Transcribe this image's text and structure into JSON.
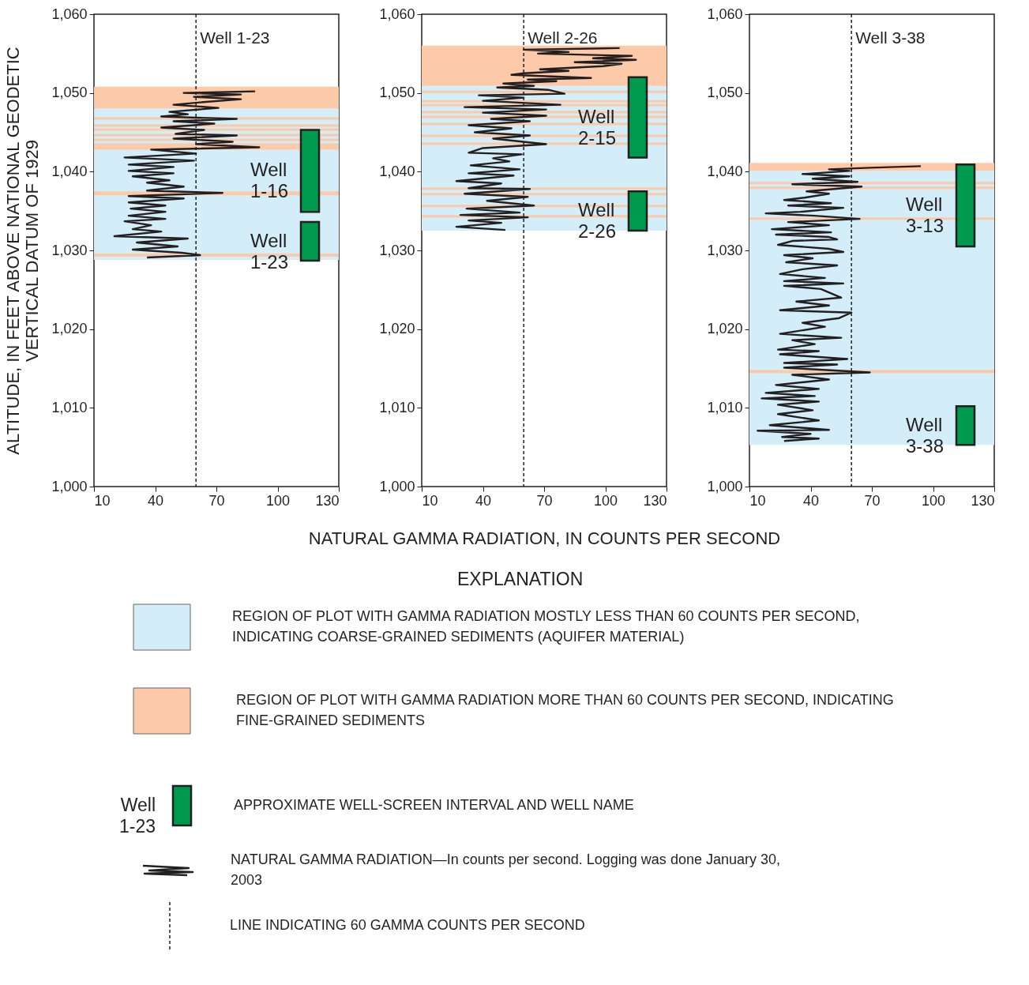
{
  "chart_data": [
    {
      "type": "line",
      "ylabel": "ALTITUDE, IN FEET ABOVE NATIONAL GEODETIC VERTICAL DATUM OF 1929",
      "xlim": [
        10,
        130
      ],
      "xticks": [
        10,
        40,
        70,
        100,
        130
      ],
      "ylim": [
        1000,
        1060
      ],
      "yticks": [
        {
          "value": 1000,
          "label": "1,000"
        },
        {
          "value": 1010,
          "label": "1,010"
        },
        {
          "value": 1020,
          "label": "1,020"
        },
        {
          "value": 1030,
          "label": "1,030"
        },
        {
          "value": 1040,
          "label": "1,040"
        },
        {
          "value": 1050,
          "label": "1,050"
        },
        {
          "value": 1060,
          "label": "1,060"
        }
      ],
      "series": [
        {
          "color": "#231f20",
          "x": [
            89,
            54,
            82,
            59,
            82,
            62,
            49,
            71,
            47,
            56,
            43,
            80,
            49,
            69,
            43,
            64,
            50,
            80,
            49,
            78,
            60,
            91,
            38,
            60,
            25,
            59,
            27,
            49,
            27,
            49,
            29,
            47,
            36,
            54,
            36,
            73,
            27,
            54,
            27,
            45,
            28,
            45,
            27,
            45,
            25,
            38,
            29,
            43,
            20,
            56,
            31,
            51,
            29,
            53,
            62,
            36
          ],
          "values": [
            1050.2,
            1050.0,
            1049.8,
            1049.5,
            1049.2,
            1048.8,
            1048.5,
            1048.1,
            1047.6,
            1047.3,
            1047.0,
            1046.7,
            1046.4,
            1046.1,
            1045.6,
            1045.3,
            1044.8,
            1044.6,
            1044.2,
            1043.8,
            1043.5,
            1043.1,
            1042.8,
            1042.3,
            1041.8,
            1041.4,
            1040.9,
            1040.6,
            1040.1,
            1039.8,
            1039.4,
            1038.9,
            1038.6,
            1038.1,
            1037.6,
            1037.3,
            1036.9,
            1036.6,
            1036.1,
            1035.7,
            1035.3,
            1034.9,
            1034.4,
            1034.0,
            1033.7,
            1033.2,
            1032.7,
            1032.4,
            1031.8,
            1031.5,
            1031.0,
            1030.5,
            1030.1,
            1029.7,
            1029.4,
            1029.1
          ]
        }
      ],
      "ref_lines": [
        {
          "axis": "x",
          "value": 60,
          "label": "Well 1-23",
          "line_style": "dashed",
          "color": "#231f20"
        }
      ],
      "bands": [
        {
          "axis": "y",
          "from": 1028.8,
          "to": 1048.0,
          "color": "#d3edf9"
        },
        {
          "axis": "y",
          "from": 1048.0,
          "to": 1050.8,
          "color": "#fccaa8"
        },
        {
          "axis": "y",
          "from": 1046.6,
          "to": 1046.9,
          "color": "#fccaa8"
        },
        {
          "axis": "y",
          "from": 1045.7,
          "to": 1046.0,
          "color": "#fccaa8"
        },
        {
          "axis": "y",
          "from": 1045.2,
          "to": 1045.5,
          "color": "#fccaa8"
        },
        {
          "axis": "y",
          "from": 1044.5,
          "to": 1044.8,
          "color": "#fccaa8"
        },
        {
          "axis": "y",
          "from": 1043.9,
          "to": 1044.2,
          "color": "#fccaa8"
        },
        {
          "axis": "y",
          "from": 1042.8,
          "to": 1043.6,
          "color": "#fccaa8"
        },
        {
          "axis": "y",
          "from": 1037.0,
          "to": 1037.5,
          "color": "#fccaa8"
        },
        {
          "axis": "y",
          "from": 1029.2,
          "to": 1029.6,
          "color": "#fccaa8"
        },
        {
          "axis": "y",
          "from": 1034.9,
          "to": 1045.3,
          "label": "Well 1-16",
          "color": "#009a4e"
        },
        {
          "axis": "y",
          "from": 1028.7,
          "to": 1033.6,
          "label": "Well 1-23",
          "color": "#009a4e"
        }
      ]
    },
    {
      "type": "line",
      "xlabel": "NATURAL GAMMA RADIATION, IN COUNTS PER SECOND",
      "xlim": [
        10,
        130
      ],
      "xticks": [
        10,
        40,
        70,
        100,
        130
      ],
      "ylim": [
        1000,
        1060
      ],
      "yticks": [
        {
          "value": 1000,
          "label": "1,000"
        },
        {
          "value": 1010,
          "label": "1,010"
        },
        {
          "value": 1020,
          "label": "1,020"
        },
        {
          "value": 1030,
          "label": "1,030"
        },
        {
          "value": 1040,
          "label": "1,040"
        },
        {
          "value": 1050,
          "label": "1,050"
        },
        {
          "value": 1060,
          "label": "1,060"
        }
      ],
      "series": [
        {
          "color": "#231f20",
          "x": [
            107,
            60,
            82,
            67,
            113,
            94,
            115,
            85,
            108,
            99,
            68,
            82,
            60,
            54,
            93,
            62,
            76,
            50,
            65,
            47,
            72,
            80,
            38,
            60,
            40,
            78,
            31,
            71,
            40,
            71,
            44,
            63,
            33,
            54,
            36,
            63,
            45,
            71,
            40,
            33,
            59,
            45,
            53,
            34,
            58,
            33,
            55,
            27,
            49,
            33,
            63,
            31,
            62,
            42,
            65,
            32,
            58,
            29,
            62,
            33,
            49,
            27,
            51
          ],
          "values": [
            1055.7,
            1055.5,
            1055.2,
            1055.0,
            1054.7,
            1054.4,
            1054.2,
            1053.9,
            1053.7,
            1053.4,
            1053.0,
            1052.8,
            1052.5,
            1052.3,
            1051.9,
            1051.7,
            1051.5,
            1051.2,
            1050.9,
            1050.7,
            1050.4,
            1049.9,
            1049.7,
            1049.4,
            1049.0,
            1048.5,
            1048.2,
            1047.9,
            1047.5,
            1047.1,
            1046.7,
            1046.4,
            1045.9,
            1045.5,
            1045.0,
            1044.6,
            1044.2,
            1043.5,
            1043.0,
            1042.4,
            1042.2,
            1041.7,
            1041.3,
            1040.8,
            1040.3,
            1039.8,
            1039.5,
            1038.8,
            1038.5,
            1037.9,
            1037.8,
            1037.2,
            1036.8,
            1036.3,
            1035.7,
            1035.3,
            1034.8,
            1034.5,
            1034.2,
            1033.8,
            1033.5,
            1033.0,
            1032.6
          ]
        }
      ],
      "ref_lines": [
        {
          "axis": "x",
          "value": 60,
          "label": "Well 2-26",
          "line_style": "dashed",
          "color": "#231f20"
        }
      ],
      "bands": [
        {
          "axis": "y",
          "from": 1032.5,
          "to": 1050.9,
          "color": "#d3edf9"
        },
        {
          "axis": "y",
          "from": 1050.9,
          "to": 1056.0,
          "color": "#fccaa8"
        },
        {
          "axis": "y",
          "from": 1050.0,
          "to": 1050.3,
          "color": "#fccaa8"
        },
        {
          "axis": "y",
          "from": 1048.8,
          "to": 1049.1,
          "color": "#fccaa8"
        },
        {
          "axis": "y",
          "from": 1048.3,
          "to": 1048.6,
          "color": "#fccaa8"
        },
        {
          "axis": "y",
          "from": 1047.4,
          "to": 1047.7,
          "color": "#fccaa8"
        },
        {
          "axis": "y",
          "from": 1046.8,
          "to": 1047.1,
          "color": "#fccaa8"
        },
        {
          "axis": "y",
          "from": 1045.9,
          "to": 1046.2,
          "color": "#fccaa8"
        },
        {
          "axis": "y",
          "from": 1044.4,
          "to": 1044.7,
          "color": "#fccaa8"
        },
        {
          "axis": "y",
          "from": 1043.4,
          "to": 1043.7,
          "color": "#fccaa8"
        },
        {
          "axis": "y",
          "from": 1037.7,
          "to": 1038.0,
          "color": "#fccaa8"
        },
        {
          "axis": "y",
          "from": 1037.0,
          "to": 1037.3,
          "color": "#fccaa8"
        },
        {
          "axis": "y",
          "from": 1035.5,
          "to": 1035.8,
          "color": "#fccaa8"
        },
        {
          "axis": "y",
          "from": 1034.2,
          "to": 1034.5,
          "color": "#fccaa8"
        },
        {
          "axis": "y",
          "from": 1041.8,
          "to": 1052.0,
          "label": "Well 2-15",
          "color": "#009a4e"
        },
        {
          "axis": "y",
          "from": 1032.5,
          "to": 1037.5,
          "label": "Well 2-26",
          "color": "#009a4e"
        }
      ]
    },
    {
      "type": "line",
      "xlim": [
        10,
        130
      ],
      "xticks": [
        10,
        40,
        70,
        100,
        130
      ],
      "ylim": [
        1000,
        1060
      ],
      "yticks": [
        {
          "value": 1000,
          "label": "1,000"
        },
        {
          "value": 1010,
          "label": "1,010"
        },
        {
          "value": 1020,
          "label": "1,020"
        },
        {
          "value": 1030,
          "label": "1,030"
        },
        {
          "value": 1040,
          "label": "1,040"
        },
        {
          "value": 1050,
          "label": "1,050"
        },
        {
          "value": 1060,
          "label": "1,060"
        }
      ],
      "series": [
        {
          "color": "#231f20",
          "x": [
            94,
            69,
            49,
            59,
            36,
            59,
            41,
            63,
            31,
            65,
            38,
            49,
            37,
            27,
            50,
            29,
            56,
            35,
            18,
            42,
            64,
            29,
            49,
            21,
            50,
            23,
            49,
            53,
            31,
            24,
            49,
            56,
            27,
            41,
            28,
            53,
            36,
            25,
            47,
            27,
            56,
            27,
            45,
            55,
            33,
            49,
            25,
            60,
            54,
            36,
            47,
            25,
            55,
            31,
            42,
            24,
            44,
            25,
            58,
            27,
            53,
            27,
            69,
            31,
            49,
            23,
            44,
            18,
            42,
            16,
            44,
            24,
            41,
            24,
            44,
            20,
            49,
            14,
            40,
            26,
            44,
            27
          ],
          "values": [
            1040.7,
            1040.5,
            1040.3,
            1040.1,
            1039.7,
            1039.4,
            1039.1,
            1038.7,
            1038.4,
            1038.1,
            1037.5,
            1037.2,
            1036.7,
            1036.4,
            1036.0,
            1035.7,
            1035.4,
            1034.9,
            1034.7,
            1034.4,
            1034.0,
            1033.6,
            1033.2,
            1032.7,
            1032.3,
            1032.0,
            1031.7,
            1031.4,
            1031.2,
            1030.7,
            1030.2,
            1029.8,
            1029.4,
            1029.0,
            1028.5,
            1028.1,
            1027.6,
            1027.0,
            1026.5,
            1026.1,
            1025.8,
            1025.5,
            1025.1,
            1024.0,
            1023.5,
            1023.0,
            1022.4,
            1022.1,
            1021.4,
            1020.8,
            1020.3,
            1019.4,
            1018.9,
            1018.6,
            1018.1,
            1017.4,
            1017.2,
            1016.8,
            1016.2,
            1015.7,
            1015.5,
            1015.1,
            1014.5,
            1014.2,
            1013.6,
            1012.9,
            1012.4,
            1011.9,
            1011.5,
            1011.2,
            1010.8,
            1010.4,
            1009.7,
            1009.2,
            1008.4,
            1007.8,
            1007.2,
            1007.1,
            1006.7,
            1006.3,
            1006.1,
            1005.8
          ]
        }
      ],
      "ref_lines": [
        {
          "axis": "x",
          "value": 60,
          "label": "Well 3-38",
          "line_style": "dashed",
          "color": "#231f20"
        }
      ],
      "bands": [
        {
          "axis": "y",
          "from": 1005.3,
          "to": 1040.1,
          "color": "#d3edf9"
        },
        {
          "axis": "y",
          "from": 1040.1,
          "to": 1041.1,
          "color": "#fccaa8"
        },
        {
          "axis": "y",
          "from": 1038.4,
          "to": 1038.7,
          "color": "#fccaa8"
        },
        {
          "axis": "y",
          "from": 1037.8,
          "to": 1038.1,
          "color": "#fccaa8"
        },
        {
          "axis": "y",
          "from": 1033.9,
          "to": 1034.2,
          "color": "#fccaa8"
        },
        {
          "axis": "y",
          "from": 1014.4,
          "to": 1014.8,
          "color": "#fccaa8"
        },
        {
          "axis": "y",
          "from": 1030.5,
          "to": 1040.9,
          "label": "Well 3-13",
          "color": "#009a4e"
        },
        {
          "axis": "y",
          "from": 1005.3,
          "to": 1010.2,
          "label": "Well 3-38",
          "color": "#009a4e"
        }
      ]
    },
    {
      "type": "other",
      "title": "EXPLANATION",
      "colors": [
        "#d3edf9",
        "#fccaa8",
        "#009a4e"
      ],
      "annotations": [
        "REGION OF PLOT WITH GAMMA RADIATION MOSTLY LESS THAN 60 COUNTS PER SECOND, INDICATING COARSE-GRAINED SEDIMENTS (AQUIFER MATERIAL)",
        "REGION OF PLOT WITH GAMMA RADIATION MORE THAN 60 COUNTS PER SECOND, INDICATING FINE-GRAINED SEDIMENTS",
        "Well 1-23",
        "APPROXIMATE WELL-SCREEN INTERVAL AND WELL NAME",
        "NATURAL GAMMA RADIATION—In counts per second.  Logging was done January 30, 2003",
        "LINE INDICATING 60 GAMMA COUNTS PER SECOND"
      ]
    }
  ]
}
